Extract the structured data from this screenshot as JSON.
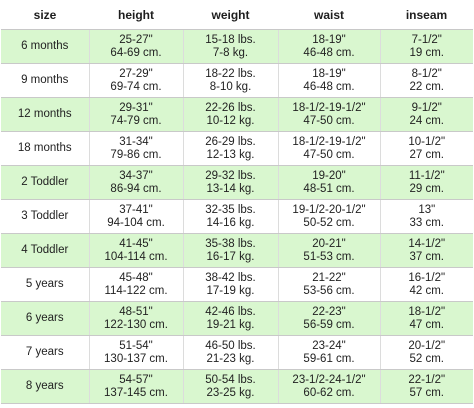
{
  "headers": [
    "size",
    "height",
    "weight",
    "waist",
    "inseam"
  ],
  "rows": [
    {
      "size": "6 months",
      "height": [
        "25-27\"",
        "64-69 cm."
      ],
      "weight": [
        "15-18 lbs.",
        "7-8 kg."
      ],
      "waist": [
        "18-19\"",
        "46-48 cm."
      ],
      "inseam": [
        "7-1/2\"",
        "19 cm."
      ]
    },
    {
      "size": "9 months",
      "height": [
        "27-29\"",
        "69-74 cm."
      ],
      "weight": [
        "18-22 lbs.",
        "8-10 kg."
      ],
      "waist": [
        "18-19\"",
        "46-48 cm."
      ],
      "inseam": [
        "8-1/2\"",
        "22 cm."
      ]
    },
    {
      "size": "12 months",
      "height": [
        "29-31\"",
        "74-79 cm."
      ],
      "weight": [
        "22-26 lbs.",
        "10-12 kg."
      ],
      "waist": [
        "18-1/2-19-1/2\"",
        "47-50 cm."
      ],
      "inseam": [
        "9-1/2\"",
        "24 cm."
      ]
    },
    {
      "size": "18 months",
      "height": [
        "31-34\"",
        "79-86 cm."
      ],
      "weight": [
        "26-29 lbs.",
        "12-13 kg."
      ],
      "waist": [
        "18-1/2-19-1/2\"",
        "47-50 cm."
      ],
      "inseam": [
        "10-1/2\"",
        "27 cm."
      ]
    },
    {
      "size": "2 Toddler",
      "height": [
        "34-37\"",
        "86-94 cm."
      ],
      "weight": [
        "29-32 lbs.",
        "13-14 kg."
      ],
      "waist": [
        "19-20\"",
        "48-51 cm."
      ],
      "inseam": [
        "11-1/2\"",
        "29 cm."
      ]
    },
    {
      "size": "3 Toddler",
      "height": [
        "37-41\"",
        "94-104 cm."
      ],
      "weight": [
        "32-35 lbs.",
        "14-16 kg."
      ],
      "waist": [
        "19-1/2-20-1/2\"",
        "50-52 cm."
      ],
      "inseam": [
        "13\"",
        "33 cm."
      ]
    },
    {
      "size": "4 Toddler",
      "height": [
        "41-45\"",
        "104-114 cm."
      ],
      "weight": [
        "35-38 lbs.",
        "16-17 kg."
      ],
      "waist": [
        "20-21\"",
        "51-53 cm."
      ],
      "inseam": [
        "14-1/2\"",
        "37 cm."
      ]
    },
    {
      "size": "5 years",
      "height": [
        "45-48\"",
        "114-122 cm."
      ],
      "weight": [
        "38-42 lbs.",
        "17-19 kg."
      ],
      "waist": [
        "21-22\"",
        "53-56 cm."
      ],
      "inseam": [
        "16-1/2\"",
        "42 cm."
      ]
    },
    {
      "size": "6 years",
      "height": [
        "48-51\"",
        "122-130 cm."
      ],
      "weight": [
        "42-46 lbs.",
        "19-21 kg."
      ],
      "waist": [
        "22-23\"",
        "56-59 cm."
      ],
      "inseam": [
        "18-1/2\"",
        "47 cm."
      ]
    },
    {
      "size": "7 years",
      "height": [
        "51-54\"",
        "130-137 cm."
      ],
      "weight": [
        "46-50 lbs.",
        "21-23 kg."
      ],
      "waist": [
        "23-24\"",
        "59-61 cm."
      ],
      "inseam": [
        "20-1/2\"",
        "52 cm."
      ]
    },
    {
      "size": "8 years",
      "height": [
        "54-57\"",
        "137-145 cm."
      ],
      "weight": [
        "50-54 lbs.",
        "23-25 kg."
      ],
      "waist": [
        "23-1/2-24-1/2\"",
        "60-62 cm."
      ],
      "inseam": [
        "22-1/2\"",
        "57 cm."
      ]
    }
  ],
  "colors": {
    "row_alt_green": "#d9f7cf",
    "row_white": "#ffffff",
    "text": "#222222"
  }
}
